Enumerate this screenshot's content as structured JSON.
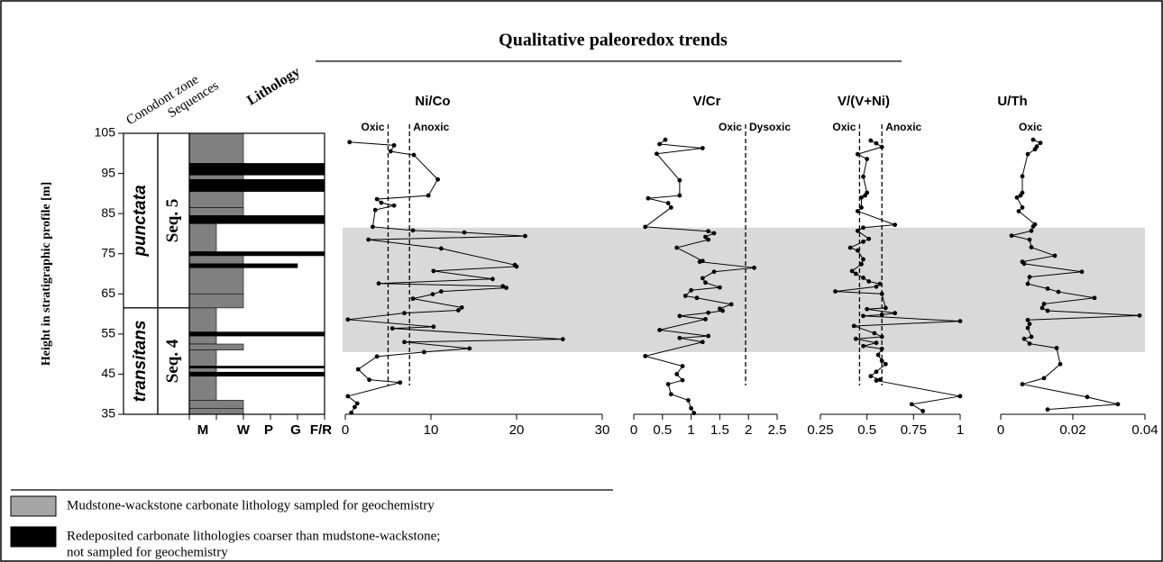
{
  "chart_data": {
    "type": "strat-profile",
    "title": "Qualitative paleoredox trends",
    "y_label": "Height in stratigraphic profile [m]",
    "ylim": [
      35,
      105
    ],
    "yticks": [
      35,
      45,
      55,
      65,
      75,
      85,
      95,
      105
    ],
    "column_headers": [
      "Conodont zone",
      "Sequences",
      "Lithology"
    ],
    "zones": [
      {
        "name": "punctata",
        "top": 105,
        "base": 61.5
      },
      {
        "name": "transitans",
        "top": 61.5,
        "base": 35
      }
    ],
    "sequences": [
      {
        "name": "Seq. 5",
        "top": 105,
        "base": 61.5
      },
      {
        "name": "Seq. 4",
        "top": 61.5,
        "base": 35
      }
    ],
    "lithology": {
      "categories": [
        "M",
        "W",
        "P",
        "G",
        "F/R"
      ],
      "colors": {
        "sampled": "#808080",
        "redeposited": "#000000"
      },
      "beds": [
        {
          "base": 97.5,
          "top": 105,
          "texture": "W"
        },
        {
          "base": 96.2,
          "top": 97.5,
          "texture": "F/R"
        },
        {
          "base": 94.6,
          "top": 96.2,
          "texture": "F/R"
        },
        {
          "base": 93.5,
          "top": 94.6,
          "texture": "W"
        },
        {
          "base": 90.5,
          "top": 93.5,
          "texture": "F/R"
        },
        {
          "base": 86.5,
          "top": 90.5,
          "texture": "W"
        },
        {
          "base": 84.5,
          "top": 86.5,
          "texture": "W"
        },
        {
          "base": 82.5,
          "top": 84.5,
          "texture": "F/R"
        },
        {
          "base": 75.5,
          "top": 82.5,
          "texture": "M"
        },
        {
          "base": 74.5,
          "top": 75.5,
          "texture": "F/R"
        },
        {
          "base": 72.5,
          "top": 74.5,
          "texture": "W"
        },
        {
          "base": 71.5,
          "top": 72.5,
          "texture": "G"
        },
        {
          "base": 65,
          "top": 71.5,
          "texture": "W"
        },
        {
          "base": 61.5,
          "top": 65,
          "texture": "W"
        },
        {
          "base": 55.5,
          "top": 61.5,
          "texture": "M"
        },
        {
          "base": 54.5,
          "top": 55.5,
          "texture": "F/R"
        },
        {
          "base": 52.5,
          "top": 54.5,
          "texture": "M"
        },
        {
          "base": 51,
          "top": 52.5,
          "texture": "W"
        },
        {
          "base": 47,
          "top": 51,
          "texture": "M"
        },
        {
          "base": 46.5,
          "top": 47,
          "texture": "F/R"
        },
        {
          "base": 45.5,
          "top": 46.5,
          "texture": "M"
        },
        {
          "base": 44.5,
          "top": 45.5,
          "texture": "F/R"
        },
        {
          "base": 38.5,
          "top": 44.5,
          "texture": "M"
        },
        {
          "base": 36.5,
          "top": 38.5,
          "texture": "W"
        },
        {
          "base": 35,
          "top": 36.5,
          "texture": "W"
        }
      ]
    },
    "highlight": [
      50.5,
      81.5
    ],
    "panels": [
      {
        "title": "Ni/Co",
        "xlim": [
          0,
          30
        ],
        "xticks": [
          0,
          10,
          20,
          30
        ],
        "thresholds": [
          5,
          7.5
        ],
        "labels": [
          "Oxic",
          "Anoxic"
        ],
        "color": "#000000",
        "heights": [
          102.8,
          102,
          100.5,
          99.6,
          93.5,
          89.5,
          88.6,
          87.7,
          87,
          85.9,
          81.7,
          80.8,
          80.3,
          79.4,
          78.5,
          76.3,
          72.2,
          71.8,
          70.7,
          68.7,
          67.6,
          66.9,
          66.5,
          65.6,
          64.9,
          63.8,
          61.6,
          60.9,
          60.2,
          58.6,
          56.8,
          56.4,
          53.7,
          53,
          51.4,
          50.5,
          49.4,
          46.2,
          43.6,
          42.9,
          39.5,
          37.7,
          36.8,
          35.4
        ],
        "values": [
          0.5,
          5.7,
          5.3,
          8,
          10.8,
          9.7,
          3.7,
          4.2,
          5.7,
          3.5,
          3.2,
          7.9,
          13.9,
          21,
          2.7,
          11.2,
          19.8,
          20,
          10.3,
          17.2,
          3.9,
          18.4,
          18.8,
          11.2,
          10.2,
          7.9,
          13.6,
          13.2,
          6.9,
          0.3,
          10.3,
          5.5,
          25.4,
          6.9,
          14.5,
          9.2,
          3.7,
          1.5,
          2.8,
          6.4,
          0.3,
          1.4,
          1.1,
          0.7
        ]
      },
      {
        "title": "V/Cr",
        "xlim": [
          0,
          2.5
        ],
        "xticks": [
          0,
          0.5,
          1,
          1.5,
          2,
          2.5
        ],
        "thresholds": [
          1.95
        ],
        "labels": [
          "Oxic",
          "Dysoxic"
        ],
        "color": "#000000",
        "heights": [
          103.4,
          102.3,
          101.3,
          99.9,
          93.3,
          89.5,
          88.8,
          87.6,
          86.5,
          81.7,
          80.6,
          80.1,
          79.2,
          78.5,
          76.5,
          73.2,
          73,
          71.5,
          70.5,
          68.9,
          67.8,
          66.6,
          65.9,
          64.5,
          64,
          62.4,
          61.3,
          60.8,
          60.3,
          59.5,
          58.7,
          56,
          54.5,
          54,
          53,
          49.5,
          47,
          45,
          43.5,
          42.5,
          40,
          38.5,
          36.5,
          35.3
        ],
        "values": [
          0.55,
          0.45,
          1.2,
          0.4,
          0.8,
          0.8,
          0.25,
          0.6,
          0.65,
          0.2,
          1.3,
          1.4,
          1.25,
          1.3,
          0.75,
          1.2,
          1.15,
          2.1,
          1.4,
          1.2,
          1.25,
          1.5,
          1,
          0.9,
          1.1,
          1.7,
          1.5,
          1.55,
          1.3,
          0.8,
          1.25,
          0.45,
          1.3,
          0.8,
          1.2,
          0.2,
          0.85,
          0.75,
          0.85,
          0.6,
          0.65,
          0.95,
          1,
          1.05
        ]
      },
      {
        "title": "V/(V+Ni)",
        "xlim": [
          0.25,
          1
        ],
        "xticks": [
          0.25,
          0.5,
          0.75,
          1
        ],
        "thresholds": [
          0.46,
          0.58
        ],
        "labels": [
          "Oxic",
          "Anoxic"
        ],
        "color": "#000000",
        "heights": [
          103.2,
          102.5,
          101.6,
          99.8,
          98.6,
          94.2,
          90.2,
          89.5,
          89,
          86.5,
          85.6,
          82.2,
          81.5,
          80.7,
          78.7,
          78,
          76.5,
          75.8,
          73.6,
          72.4,
          70.7,
          70,
          69,
          68.1,
          67.5,
          66.8,
          65.6,
          65,
          61.5,
          61.2,
          60.2,
          59.8,
          59.5,
          58.2,
          57,
          55.2,
          54.3,
          53.8,
          52.8,
          52,
          51.3,
          49.8,
          48.3,
          47.5,
          45.6,
          44.5,
          43.6,
          43.4,
          39.5,
          37.5,
          35.8
        ],
        "values": [
          0.52,
          0.55,
          0.58,
          0.45,
          0.5,
          0.48,
          0.5,
          0.49,
          0.47,
          0.47,
          0.45,
          0.65,
          0.48,
          0.45,
          0.51,
          0.48,
          0.41,
          0.45,
          0.48,
          0.47,
          0.42,
          0.44,
          0.48,
          0.51,
          0.57,
          0.55,
          0.33,
          0.58,
          0.6,
          0.5,
          0.65,
          0.58,
          0.48,
          1,
          0.43,
          0.54,
          0.58,
          0.44,
          0.55,
          0.48,
          0.58,
          0.56,
          0.58,
          0.6,
          0.55,
          0.52,
          0.57,
          0.55,
          1,
          0.74,
          0.8
        ]
      },
      {
        "title": "U/Th",
        "xlim": [
          0,
          0.04
        ],
        "xticks": [
          0,
          0.02,
          0.04
        ],
        "thresholds": [],
        "labels": [
          "Oxic"
        ],
        "color": "#000000",
        "heights": [
          103.4,
          102.6,
          101.7,
          101,
          99.8,
          94.3,
          90.2,
          89.5,
          89,
          86.5,
          85.6,
          82.3,
          81.8,
          80.7,
          79.5,
          78.5,
          76.6,
          74.5,
          73,
          72.5,
          70.5,
          69.2,
          67.5,
          66.3,
          65.5,
          64,
          62.5,
          61.5,
          60.8,
          59.6,
          58.5,
          57.5,
          56.5,
          54.3,
          53.8,
          52.6,
          51.5,
          47.5,
          44,
          42.5,
          39.3,
          37.5,
          36.2
        ],
        "values": [
          0.009,
          0.011,
          0.01,
          0.0095,
          0.0075,
          0.006,
          0.006,
          0.0055,
          0.0045,
          0.006,
          0.005,
          0.0095,
          0.009,
          0.0085,
          0.003,
          0.008,
          0.0085,
          0.015,
          0.006,
          0.0065,
          0.0225,
          0.008,
          0.0075,
          0.013,
          0.016,
          0.026,
          0.012,
          0.0115,
          0.013,
          0.0385,
          0.0075,
          0.008,
          0.0075,
          0.0085,
          0.0065,
          0.008,
          0.0155,
          0.0165,
          0.012,
          0.006,
          0.024,
          0.0325,
          0.013
        ]
      }
    ],
    "legend": [
      {
        "lines": [
          "Mudstone-wackstone carbonate lithology sampled for geochemistry"
        ],
        "color": "#a6a6a6"
      },
      {
        "lines": [
          "Redeposited carbonate lithologies coarser than mudstone-wackstone;",
          "not sampled for geochemistry"
        ],
        "color": "#000000"
      }
    ]
  }
}
